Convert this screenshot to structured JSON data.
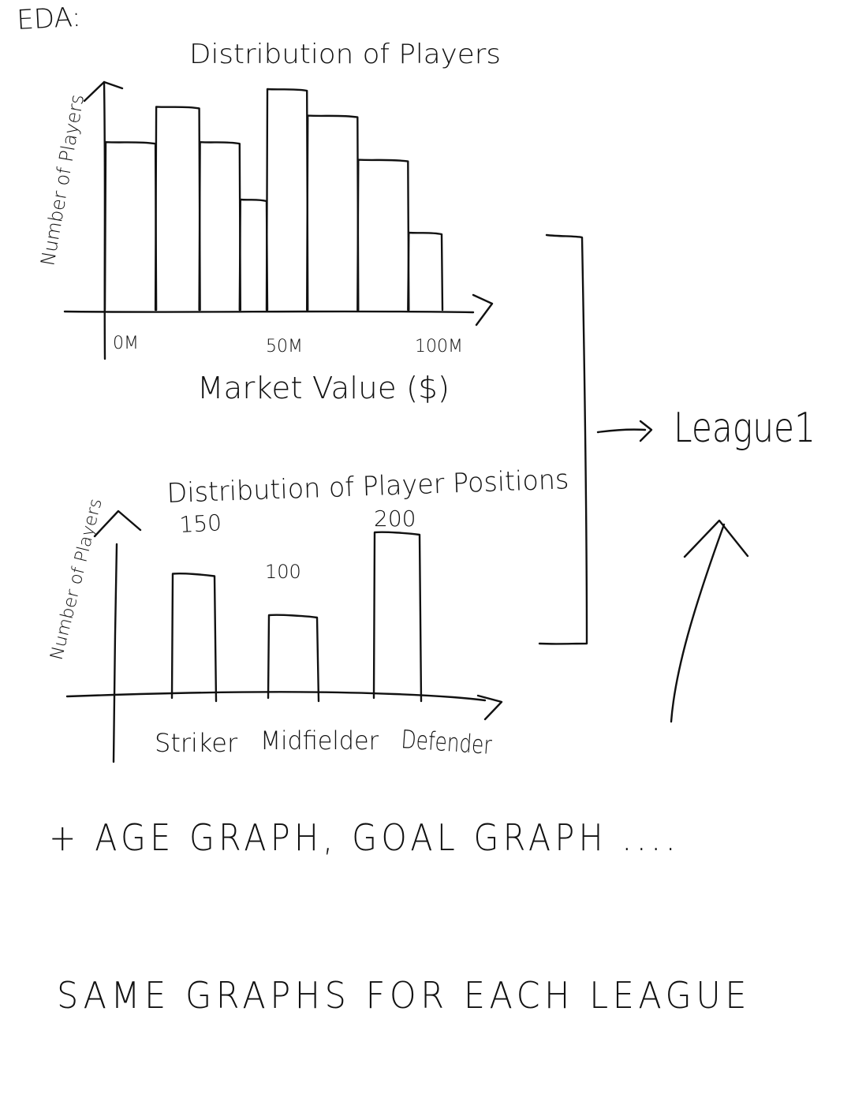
{
  "header": {
    "label": "EDA:"
  },
  "charts": {
    "market_value": {
      "title": "Distribution of Players",
      "ylabel": "Number of Players",
      "xlabel": "Market Value ($)",
      "ticks": [
        "0M",
        "50M",
        "100M"
      ]
    },
    "positions": {
      "title": "Distribution of Player Positions",
      "ylabel": "Number of Players",
      "categories": [
        "Striker",
        "Midfielder",
        "Defender"
      ],
      "value_labels": [
        "150",
        "100",
        "200"
      ]
    }
  },
  "chart_data": [
    {
      "type": "bar",
      "title": "Distribution of Players",
      "xlabel": "Market Value ($)",
      "ylabel": "Number of Players",
      "x_ticks": [
        "0M",
        "50M",
        "100M"
      ],
      "x_tick_values": [
        0,
        50,
        100
      ],
      "bin_edges": [
        0,
        15,
        28,
        40,
        48,
        60,
        75,
        90,
        100
      ],
      "values": [
        0.76,
        0.92,
        0.76,
        0.5,
        1.0,
        0.88,
        0.68,
        0.35
      ],
      "value_note": "relative heights only"
    },
    {
      "type": "bar",
      "title": "Distribution of Player Positions",
      "xlabel": "",
      "ylabel": "Number of Players",
      "categories": [
        "Striker",
        "Midfielder",
        "Defender"
      ],
      "values": [
        150,
        100,
        200
      ]
    }
  ],
  "bracket": {
    "target_label": "League1"
  },
  "notes": {
    "more_graphs": "+ AGE GRAPH, GOAL GRAPH ....",
    "footer": "SAME GRAPHS FOR EACH LEAGUE"
  }
}
